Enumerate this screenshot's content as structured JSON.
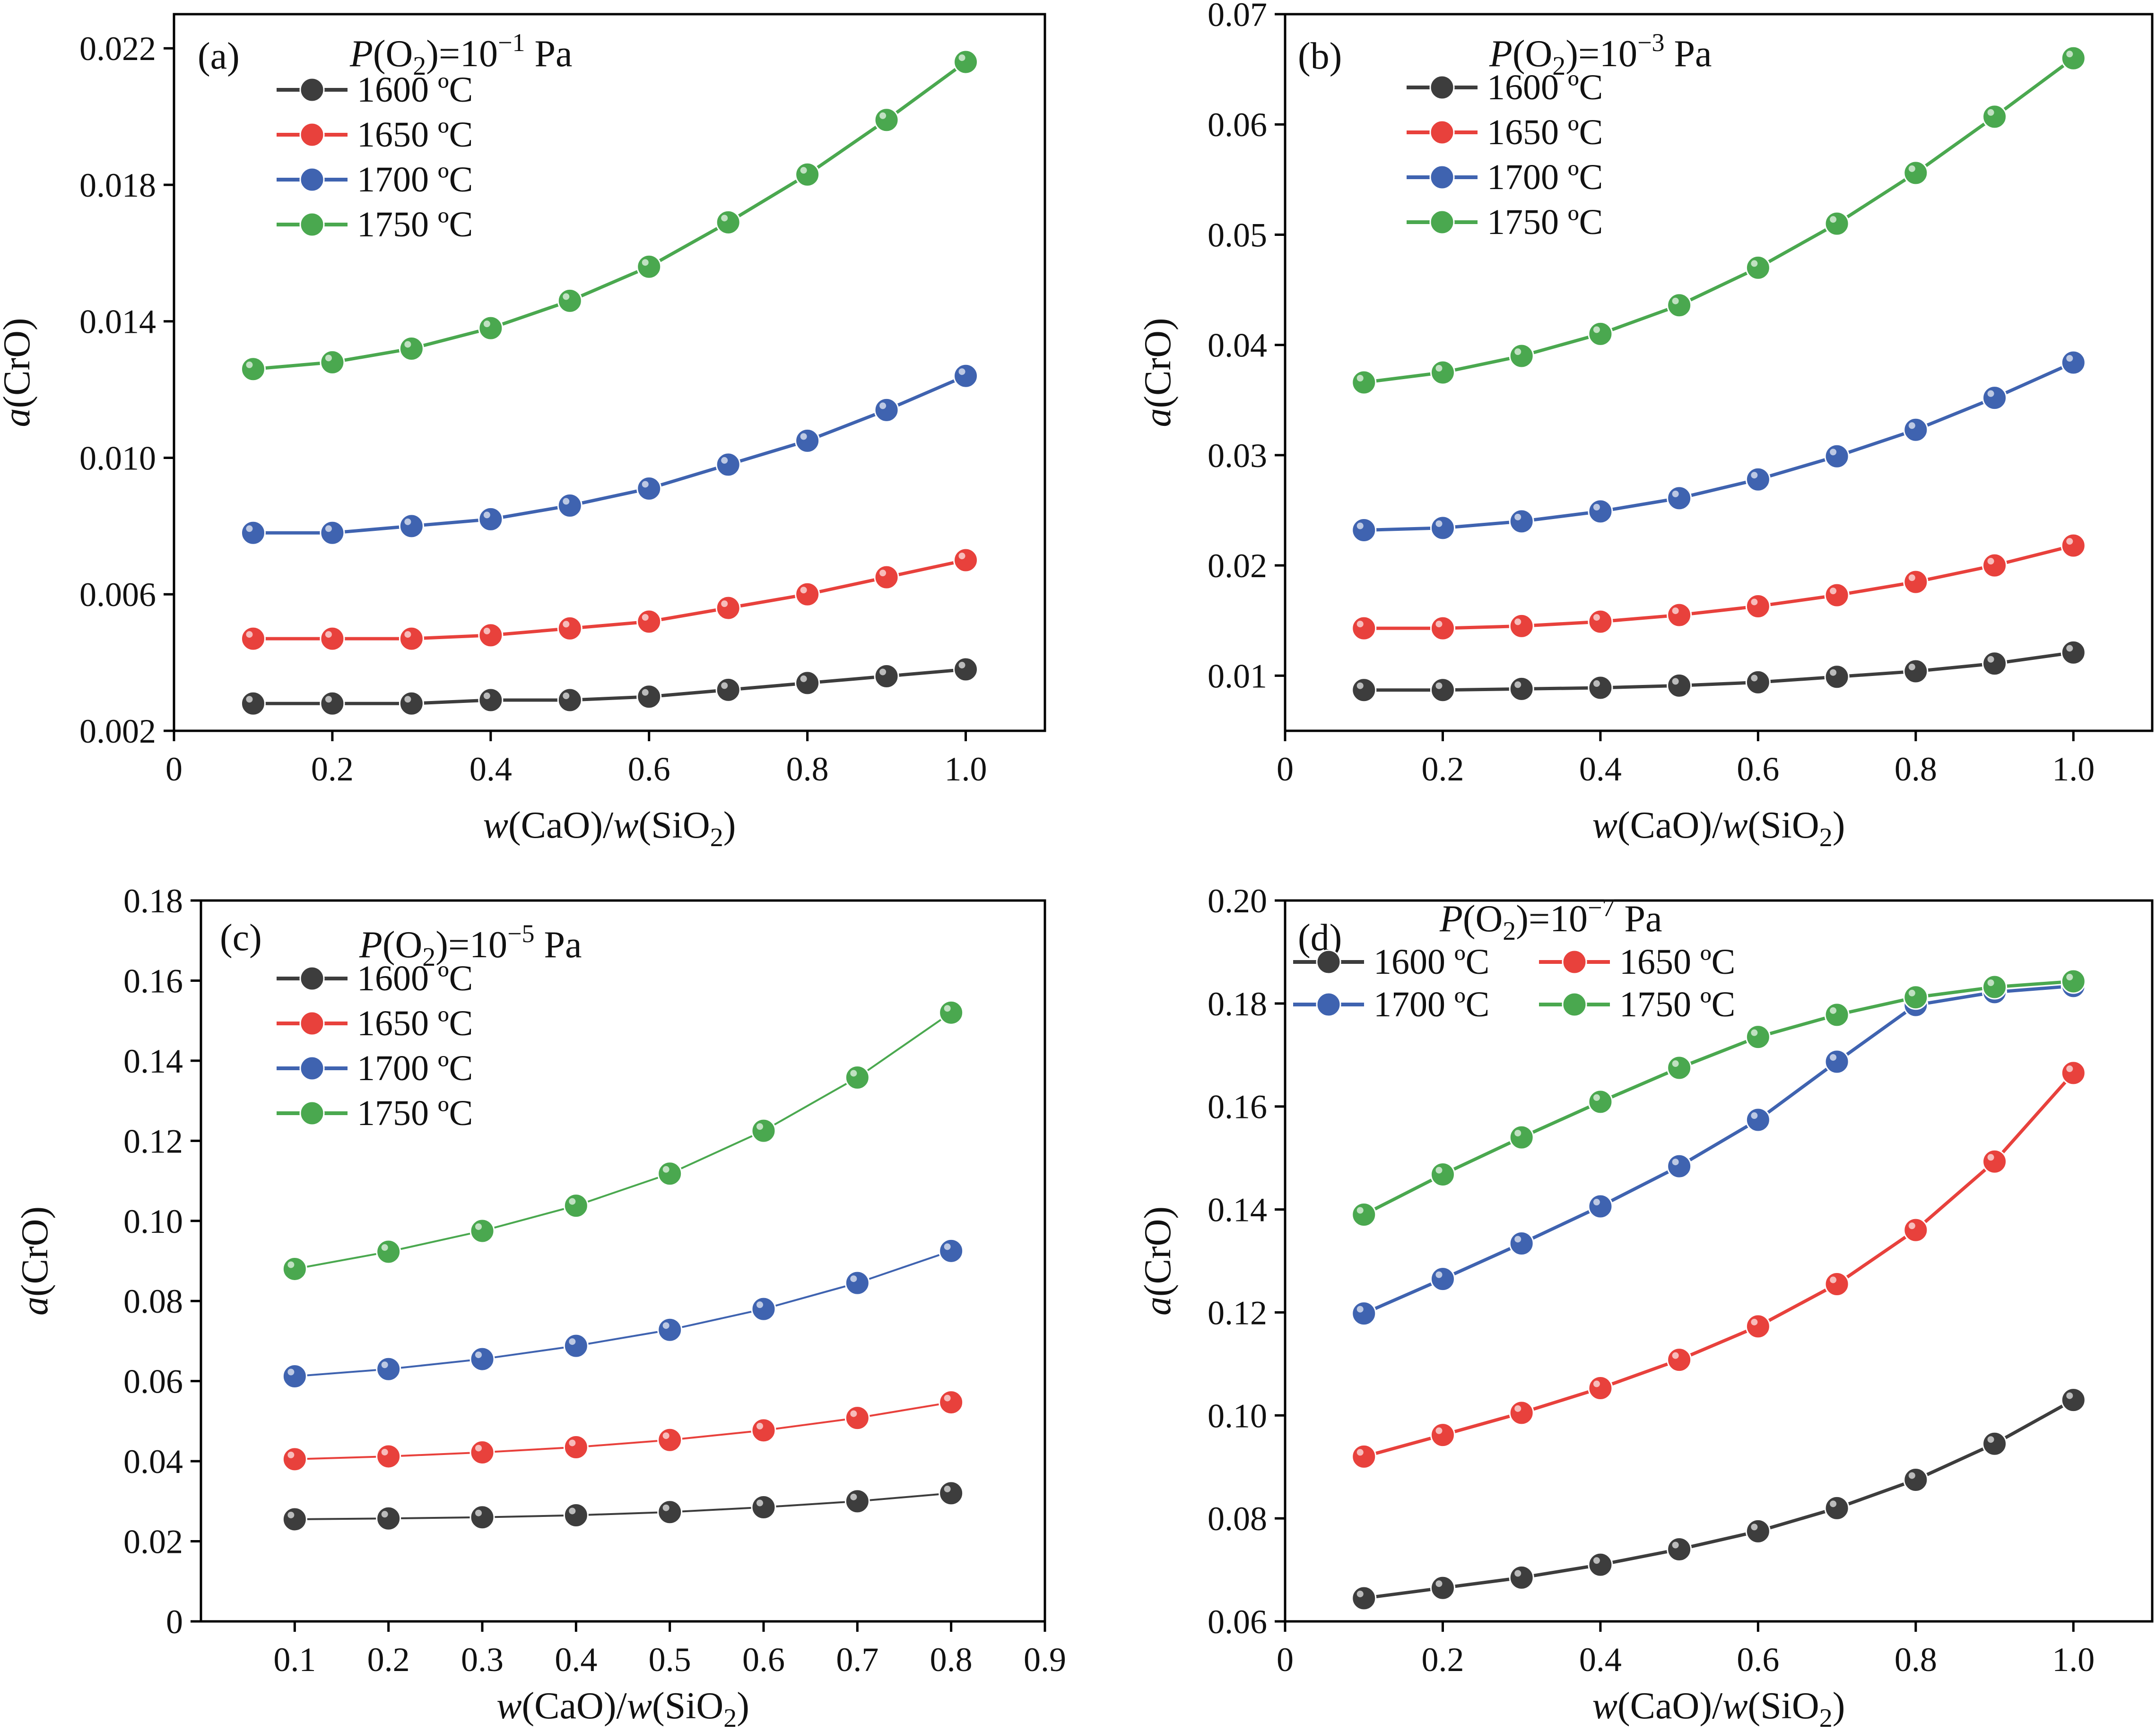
{
  "figure_title": "a(CrO) versus w(CaO)/w(SiO2) at four oxygen partial pressures",
  "colors": {
    "1600": "#3d3d3d",
    "1650": "#e8413c",
    "1700": "#3f63b0",
    "1750": "#4aa84f"
  },
  "chart_data": [
    {
      "type": "line",
      "panel_label": "(a)",
      "annotation": {
        "prefix": "P",
        "mid": "(O",
        "sub": "2",
        "post": ")=10",
        "sup": "−1",
        "unit": " Pa"
      },
      "xlabel": {
        "w1": "w",
        "t1": "(CaO)/",
        "w2": "w",
        "t2": "(SiO",
        "sub": "2",
        "t3": ")"
      },
      "ylabel": {
        "italic": "a",
        "rest": "(CrO)"
      },
      "xlim": [
        0,
        1.1
      ],
      "ylim": [
        0.002,
        0.023
      ],
      "xticks": [
        0,
        0.2,
        0.4,
        0.6,
        0.8,
        1.0
      ],
      "xtick_labels": [
        "0",
        "0.2",
        "0.4",
        "0.6",
        "0.8",
        "1.0"
      ],
      "yticks": [
        0.002,
        0.006,
        0.01,
        0.014,
        0.018,
        0.022
      ],
      "ytick_labels": [
        "0.002",
        "0.006",
        "0.010",
        "0.014",
        "0.018",
        "0.022"
      ],
      "legend_layout": "column",
      "x": [
        0.1,
        0.2,
        0.3,
        0.4,
        0.5,
        0.6,
        0.7,
        0.8,
        0.9,
        1.0
      ],
      "series": [
        {
          "name": "1600 ºC",
          "key": "1600",
          "values": [
            0.0028,
            0.0028,
            0.0028,
            0.0029,
            0.0029,
            0.003,
            0.0032,
            0.0034,
            0.0036,
            0.0038
          ]
        },
        {
          "name": "1650 ºC",
          "key": "1650",
          "values": [
            0.0047,
            0.0047,
            0.0047,
            0.0048,
            0.005,
            0.0052,
            0.0056,
            0.006,
            0.0065,
            0.007
          ]
        },
        {
          "name": "1700 ºC",
          "key": "1700",
          "values": [
            0.0078,
            0.0078,
            0.008,
            0.0082,
            0.0086,
            0.0091,
            0.0098,
            0.0105,
            0.0114,
            0.0124
          ]
        },
        {
          "name": "1750 ºC",
          "key": "1750",
          "values": [
            0.0126,
            0.0128,
            0.0132,
            0.0138,
            0.0146,
            0.0156,
            0.0169,
            0.0183,
            0.0199,
            0.0216
          ]
        }
      ]
    },
    {
      "type": "line",
      "panel_label": "(b)",
      "annotation": {
        "prefix": "P",
        "mid": "(O",
        "sub": "2",
        "post": ")=10",
        "sup": "−3",
        "unit": " Pa"
      },
      "xlabel": {
        "w1": "w",
        "t1": "(CaO)/",
        "w2": "w",
        "t2": "(SiO",
        "sub": "2",
        "t3": ")"
      },
      "ylabel": {
        "italic": "a",
        "rest": "(CrO)"
      },
      "xlim": [
        0,
        1.1
      ],
      "ylim": [
        0.005,
        0.07
      ],
      "xticks": [
        0,
        0.2,
        0.4,
        0.6,
        0.8,
        1.0
      ],
      "xtick_labels": [
        "0",
        "0.2",
        "0.4",
        "0.6",
        "0.8",
        "1.0"
      ],
      "yticks": [
        0.01,
        0.02,
        0.03,
        0.04,
        0.05,
        0.06,
        0.07
      ],
      "ytick_labels": [
        "0.01",
        "0.02",
        "0.03",
        "0.04",
        "0.05",
        "0.06",
        "0.07"
      ],
      "legend_layout": "column",
      "x": [
        0.1,
        0.2,
        0.3,
        0.4,
        0.5,
        0.6,
        0.7,
        0.8,
        0.9,
        1.0
      ],
      "series": [
        {
          "name": "1600 ºC",
          "key": "1600",
          "values": [
            0.0087,
            0.0087,
            0.0088,
            0.0089,
            0.0091,
            0.0094,
            0.0099,
            0.0104,
            0.0111,
            0.0121
          ]
        },
        {
          "name": "1650 ºC",
          "key": "1650",
          "values": [
            0.0143,
            0.0143,
            0.0145,
            0.0149,
            0.0155,
            0.0163,
            0.0173,
            0.0185,
            0.02,
            0.0218
          ]
        },
        {
          "name": "1700 ºC",
          "key": "1700",
          "values": [
            0.0232,
            0.0234,
            0.024,
            0.0249,
            0.0261,
            0.0278,
            0.0299,
            0.0323,
            0.0352,
            0.0384
          ]
        },
        {
          "name": "1750 ºC",
          "key": "1750",
          "values": [
            0.0366,
            0.0375,
            0.039,
            0.041,
            0.0436,
            0.047,
            0.051,
            0.0556,
            0.0607,
            0.066
          ]
        }
      ]
    },
    {
      "type": "line",
      "panel_label": "(c)",
      "annotation": {
        "prefix": "P",
        "mid": "(O",
        "sub": "2",
        "post": ")=10",
        "sup": "−5",
        "unit": " Pa"
      },
      "xlabel": {
        "w1": "w",
        "t1": "(CaO)/",
        "w2": "w",
        "t2": "(SiO",
        "sub": "2",
        "t3": ")"
      },
      "ylabel": {
        "italic": "a",
        "rest": "(CrO)"
      },
      "xlim": [
        0,
        0.9
      ],
      "ylim": [
        0,
        0.18
      ],
      "xticks": [
        0.1,
        0.2,
        0.3,
        0.4,
        0.5,
        0.6,
        0.7,
        0.8,
        0.9
      ],
      "xtick_labels": [
        "0.1",
        "0.2",
        "0.3",
        "0.4",
        "0.5",
        "0.6",
        "0.7",
        "0.8",
        "0.9"
      ],
      "yticks": [
        0,
        0.02,
        0.04,
        0.06,
        0.08,
        0.1,
        0.12,
        0.14,
        0.16,
        0.18
      ],
      "ytick_labels": [
        "0",
        "0.02",
        "0.04",
        "0.06",
        "0.08",
        "0.10",
        "0.12",
        "0.14",
        "0.16",
        "0.18"
      ],
      "legend_layout": "column",
      "thin_lines": true,
      "x": [
        0.1,
        0.2,
        0.3,
        0.4,
        0.5,
        0.6,
        0.7,
        0.8
      ],
      "series": [
        {
          "name": "1600 ºC",
          "key": "1600",
          "values": [
            0.0255,
            0.0257,
            0.026,
            0.0265,
            0.0273,
            0.0285,
            0.03,
            0.032
          ]
        },
        {
          "name": "1650 ºC",
          "key": "1650",
          "values": [
            0.0405,
            0.0412,
            0.0422,
            0.0435,
            0.0453,
            0.0477,
            0.0508,
            0.0547
          ]
        },
        {
          "name": "1700 ºC",
          "key": "1700",
          "values": [
            0.0612,
            0.063,
            0.0655,
            0.0688,
            0.0728,
            0.078,
            0.0845,
            0.0925
          ]
        },
        {
          "name": "1750 ºC",
          "key": "1750",
          "values": [
            0.088,
            0.0923,
            0.0975,
            0.1038,
            0.1118,
            0.1225,
            0.1358,
            0.152
          ]
        }
      ]
    },
    {
      "type": "line",
      "panel_label": "(d)",
      "annotation": {
        "prefix": "P",
        "mid": "(O",
        "sub": "2",
        "post": ")=10",
        "sup": "−7",
        "unit": " Pa"
      },
      "xlabel": {
        "w1": "w",
        "t1": "(CaO)/",
        "w2": "w",
        "t2": "(SiO",
        "sub": "2",
        "t3": ")"
      },
      "ylabel": {
        "italic": "a",
        "rest": "(CrO)"
      },
      "xlim": [
        0,
        1.1
      ],
      "ylim": [
        0.06,
        0.2
      ],
      "xticks": [
        0,
        0.2,
        0.4,
        0.6,
        0.8,
        1.0
      ],
      "xtick_labels": [
        "0",
        "0.2",
        "0.4",
        "0.6",
        "0.8",
        "1.0"
      ],
      "yticks": [
        0.06,
        0.08,
        0.1,
        0.12,
        0.14,
        0.16,
        0.18,
        0.2
      ],
      "ytick_labels": [
        "0.06",
        "0.08",
        "0.10",
        "0.12",
        "0.14",
        "0.16",
        "0.18",
        "0.20"
      ],
      "legend_layout": "grid",
      "x": [
        0.1,
        0.2,
        0.3,
        0.4,
        0.5,
        0.6,
        0.7,
        0.8,
        0.9,
        1.0
      ],
      "series": [
        {
          "name": "1600 ºC",
          "key": "1600",
          "values": [
            0.0645,
            0.0665,
            0.0685,
            0.071,
            0.074,
            0.0775,
            0.082,
            0.0875,
            0.0945,
            0.103
          ]
        },
        {
          "name": "1650 ºC",
          "key": "1650",
          "values": [
            0.092,
            0.0962,
            0.1005,
            0.1053,
            0.1108,
            0.1173,
            0.1255,
            0.136,
            0.1493,
            0.1665
          ]
        },
        {
          "name": "1700 ºC",
          "key": "1700",
          "values": [
            0.1198,
            0.1265,
            0.1334,
            0.1406,
            0.1484,
            0.1574,
            0.1687,
            0.1797,
            0.1822,
            0.1834
          ]
        },
        {
          "name": "1750 ºC",
          "key": "1750",
          "values": [
            0.139,
            0.1468,
            0.154,
            0.1609,
            0.1675,
            0.1735,
            0.1778,
            0.1812,
            0.1832,
            0.1843
          ]
        }
      ]
    }
  ]
}
